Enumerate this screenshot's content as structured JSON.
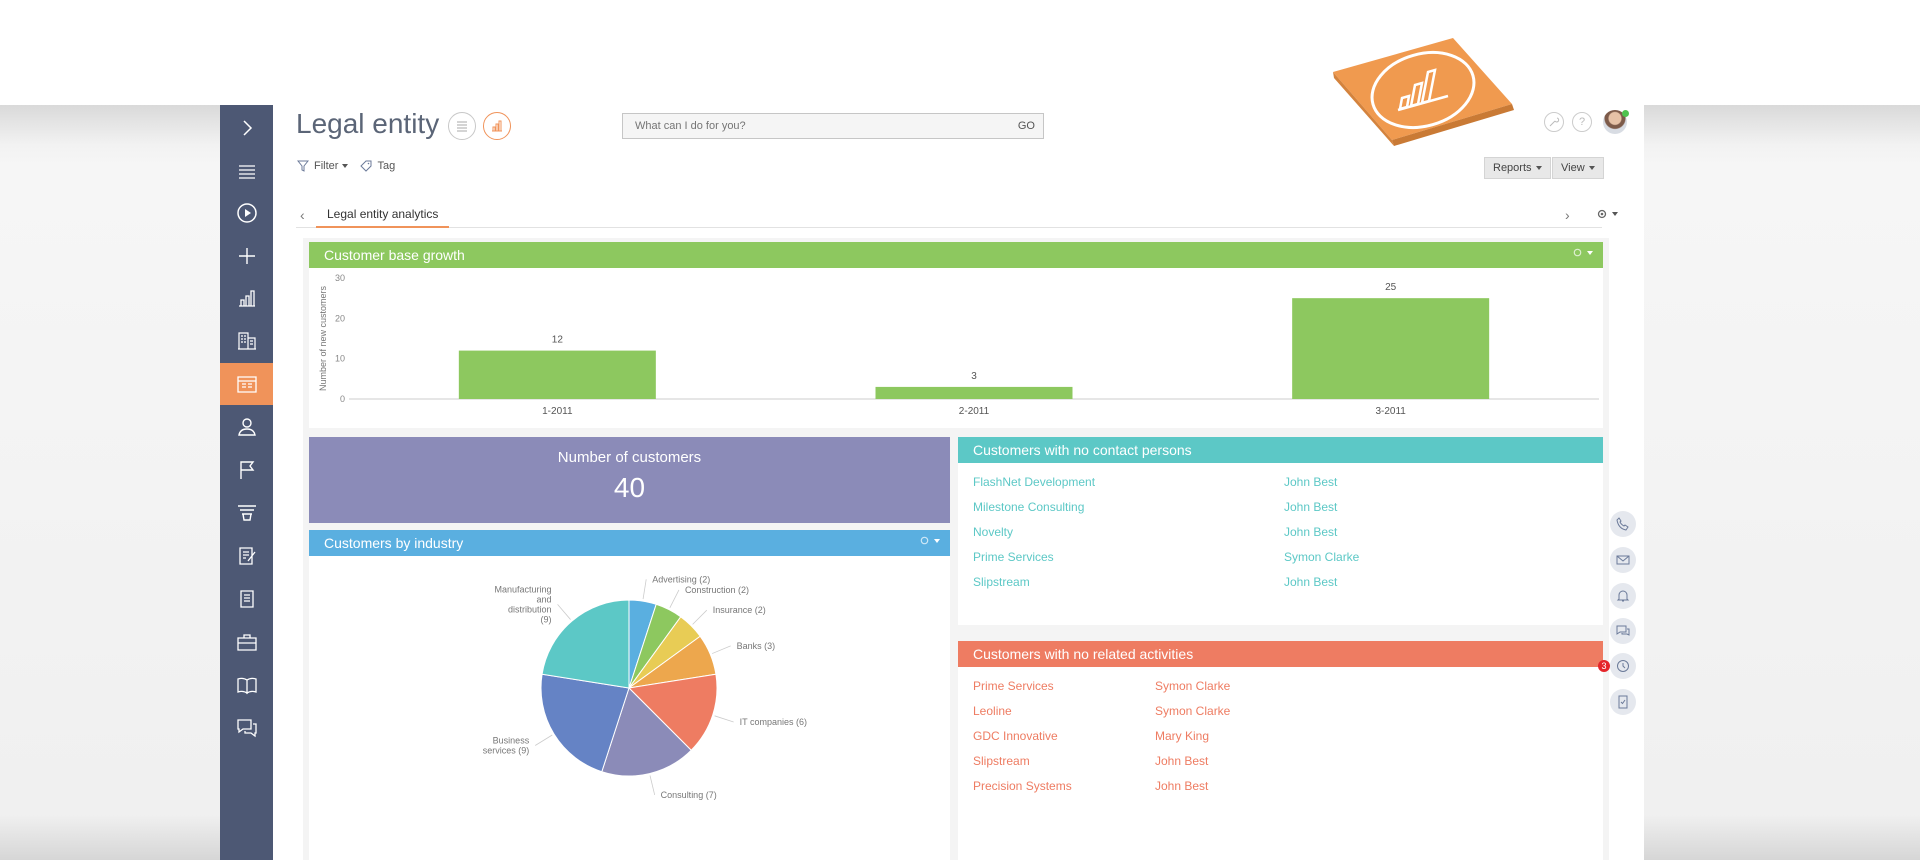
{
  "page": {
    "title": "Legal entity",
    "search_placeholder": "What can I do for you?",
    "search_go": "GO",
    "filter_label": "Filter",
    "tag_label": "Tag",
    "reports_label": "Reports",
    "view_label": "View"
  },
  "tabs": {
    "active": "Legal entity analytics"
  },
  "sidebar": {
    "items": [
      {
        "icon": "chevron-right-icon"
      },
      {
        "icon": "menu-icon"
      },
      {
        "icon": "play-circle-icon"
      },
      {
        "icon": "plus-icon"
      },
      {
        "icon": "bar-chart-icon"
      },
      {
        "icon": "buildings-icon"
      },
      {
        "icon": "legal-entity-icon",
        "active": true
      },
      {
        "icon": "person-icon"
      },
      {
        "icon": "flag-icon"
      },
      {
        "icon": "funnel-icon"
      },
      {
        "icon": "document-edit-icon"
      },
      {
        "icon": "document-icon"
      },
      {
        "icon": "briefcase-icon"
      },
      {
        "icon": "book-icon"
      },
      {
        "icon": "chat-icon"
      }
    ]
  },
  "customer_base_growth": {
    "title": "Customer base growth",
    "header_color": "#8dc85f"
  },
  "chart_data": {
    "type": "bar",
    "title": "Customer base growth",
    "ylabel": "Number of new customers",
    "xlabel": "",
    "categories": [
      "1-2011",
      "2-2011",
      "3-2011"
    ],
    "values": [
      12,
      3,
      25
    ],
    "ylim": [
      0,
      30
    ],
    "yticks": [
      "0",
      "10",
      "20",
      "30"
    ],
    "grid": false,
    "bar_color": "#8dc85f"
  },
  "kpi": {
    "title": "Number of customers",
    "value": "40",
    "color": "#8b8bb8"
  },
  "industry": {
    "title": "Customers by industry",
    "header_color": "#5aafe0",
    "slices": [
      {
        "label": "Advertising (2)",
        "value": 2,
        "color": "#5aafe0"
      },
      {
        "label": "Construction (2)",
        "value": 2,
        "color": "#8dc85f"
      },
      {
        "label": "Insurance (2)",
        "value": 2,
        "color": "#e8cc55"
      },
      {
        "label": "Banks (3)",
        "value": 3,
        "color": "#eda74d"
      },
      {
        "label": "IT companies (6)",
        "value": 6,
        "color": "#ee7c62"
      },
      {
        "label": "Consulting (7)",
        "value": 7,
        "color": "#8b8bb8"
      },
      {
        "label": "Business services (9)",
        "value": 9,
        "color": "#6583c5"
      },
      {
        "label": "Manufacturing and distribution (9)",
        "value": 9,
        "color": "#5cc8c6"
      }
    ]
  },
  "no_contacts": {
    "title": "Customers with no contact persons",
    "header_color": "#5cc8c6",
    "rows": [
      {
        "company": "FlashNet Development",
        "owner": "John Best"
      },
      {
        "company": "Milestone Consulting",
        "owner": "John Best"
      },
      {
        "company": "Novelty",
        "owner": "John Best"
      },
      {
        "company": "Prime Services",
        "owner": "Symon Clarke"
      },
      {
        "company": "Slipstream",
        "owner": "John Best"
      }
    ]
  },
  "no_activities": {
    "title": "Customers with no related activities",
    "header_color": "#ee7c62",
    "rows": [
      {
        "company": "Prime Services",
        "owner": "Symon Clarke"
      },
      {
        "company": "Leoline",
        "owner": "Symon Clarke"
      },
      {
        "company": "GDC Innovative",
        "owner": "Mary King"
      },
      {
        "company": "Slipstream",
        "owner": "John Best"
      },
      {
        "company": "Precision Systems",
        "owner": "John Best"
      }
    ]
  },
  "rail": {
    "badge": "3",
    "items": [
      "phone-icon",
      "mail-icon",
      "bell-icon",
      "chat-bubbles-icon",
      "clock-icon",
      "checklist-icon"
    ]
  }
}
